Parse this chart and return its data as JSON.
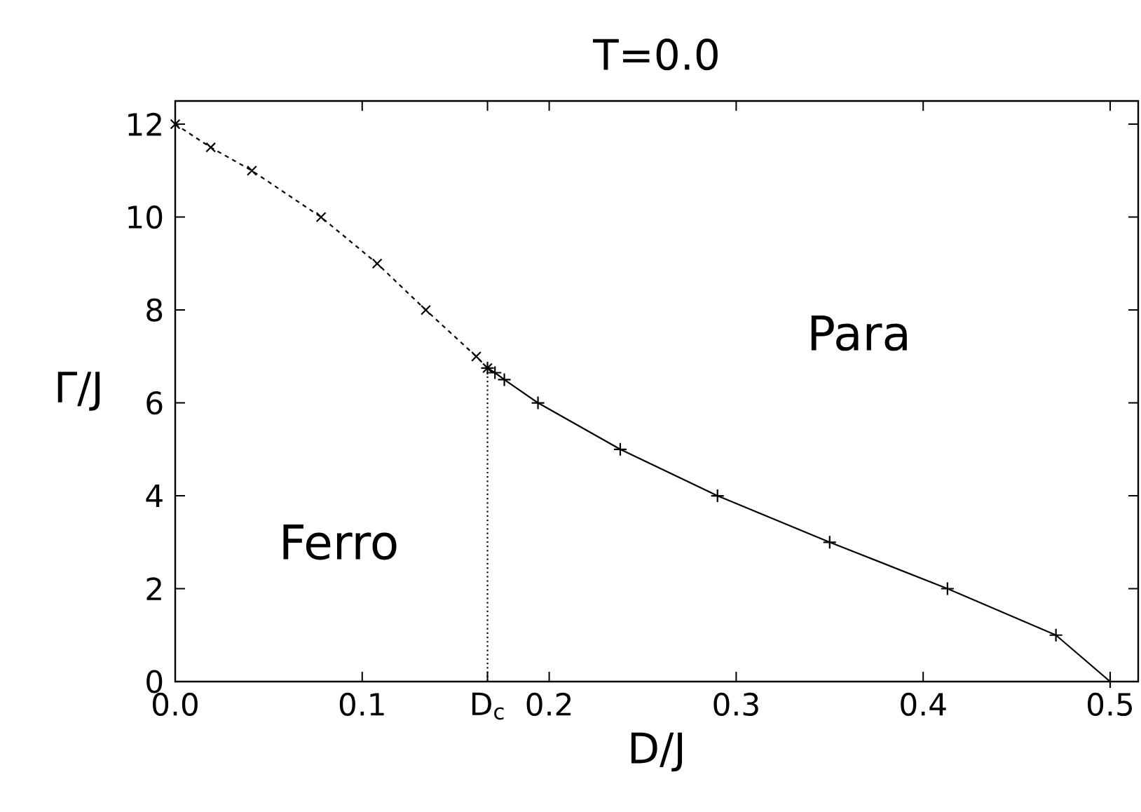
{
  "chart_data": {
    "type": "line",
    "title": "T=0.0",
    "xlabel": "D/J",
    "ylabel": "Γ/J",
    "xlim": [
      0,
      0.515
    ],
    "ylim": [
      0,
      12.5
    ],
    "xticks": [
      {
        "value": 0,
        "label": "0.0"
      },
      0.1,
      {
        "value": 0.167,
        "label": "D$_{c}$"
      },
      0.2,
      0.3,
      0.4,
      0.5
    ],
    "yticks": [
      0,
      2,
      4,
      6,
      8,
      10,
      12
    ],
    "series": [
      {
        "color": "#000000",
        "line_style": "dashed",
        "marker": "cross",
        "x": [
          0,
          0.019,
          0.041,
          0.078,
          0.108,
          0.134,
          0.161,
          0.167
        ],
        "values": [
          12,
          11.5,
          11,
          10,
          9,
          8,
          7,
          6.75
        ]
      },
      {
        "color": "#000000",
        "line_style": "solid",
        "marker": "plus",
        "x": [
          0.167,
          0.171,
          0.176,
          0.194,
          0.238,
          0.29,
          0.35,
          0.413,
          0.471,
          0.5
        ],
        "values": [
          6.75,
          6.65,
          6.5,
          6,
          5,
          4,
          3,
          2,
          1,
          0
        ]
      },
      {
        "color": "#000000",
        "line_style": "dotted",
        "marker": "none",
        "x": [
          0.167,
          0.167
        ],
        "values": [
          0,
          6.75
        ]
      }
    ],
    "annotations": [
      "Ferro",
      "Para"
    ]
  }
}
